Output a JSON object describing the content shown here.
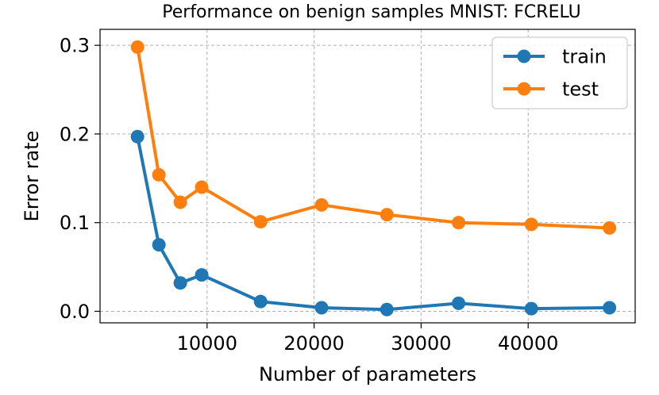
{
  "chart_data": {
    "type": "line",
    "title": "Performance on benign samples MNIST: FCRELU",
    "xlabel": "Number of parameters",
    "ylabel": "Error rate",
    "xlim": [
      0,
      50000
    ],
    "ylim": [
      -0.013,
      0.318
    ],
    "xticks": [
      {
        "value": 10000,
        "label": "10000"
      },
      {
        "value": 20000,
        "label": "20000"
      },
      {
        "value": 30000,
        "label": "30000"
      },
      {
        "value": 40000,
        "label": "40000"
      }
    ],
    "yticks": [
      {
        "value": 0.0,
        "label": "0.0"
      },
      {
        "value": 0.1,
        "label": "0.1"
      },
      {
        "value": 0.2,
        "label": "0.2"
      },
      {
        "value": 0.3,
        "label": "0.3"
      }
    ],
    "grid": true,
    "legend_position": "top-right",
    "series": [
      {
        "name": "train",
        "color": "#1f77b4",
        "x": [
          3500,
          5500,
          7500,
          9500,
          15000,
          20700,
          26800,
          33500,
          40300,
          47600
        ],
        "y": [
          0.197,
          0.075,
          0.032,
          0.041,
          0.011,
          0.004,
          0.002,
          0.009,
          0.003,
          0.004
        ]
      },
      {
        "name": "test",
        "color": "#ff7f0e",
        "x": [
          3500,
          5500,
          7500,
          9500,
          15000,
          20700,
          26800,
          33500,
          40300,
          47600
        ],
        "y": [
          0.298,
          0.154,
          0.123,
          0.14,
          0.101,
          0.12,
          0.109,
          0.1,
          0.098,
          0.094
        ]
      }
    ]
  }
}
